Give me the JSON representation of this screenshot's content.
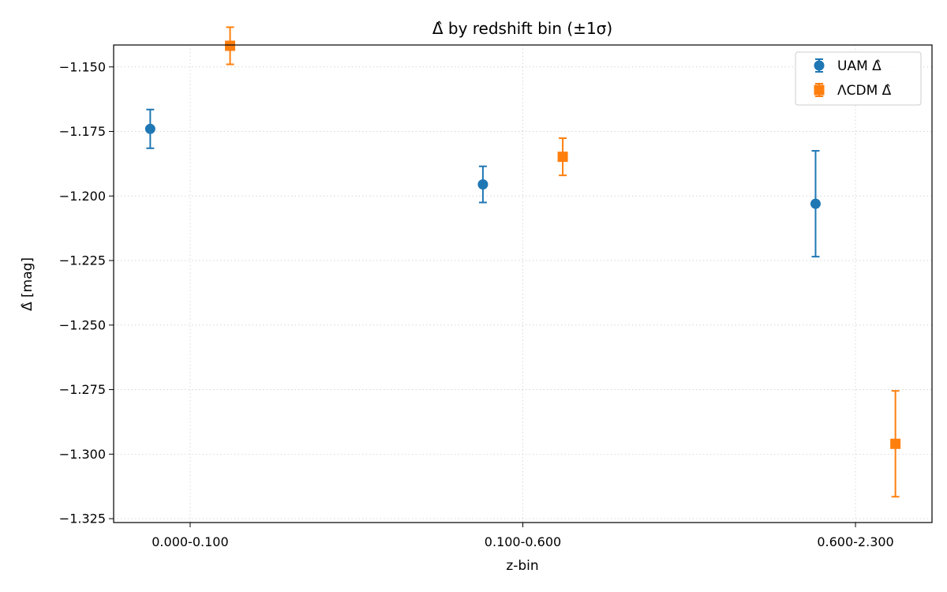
{
  "chart_data": {
    "type": "scatter",
    "title": "Δ̂ by redshift bin (±1σ)",
    "xlabel": "z-bin",
    "ylabel": "Δ̂ [mag]",
    "categories": [
      "0.000-0.100",
      "0.100-0.600",
      "0.600-2.300"
    ],
    "ylim": [
      -1.3265,
      -1.1415
    ],
    "yticks": [
      -1.325,
      -1.3,
      -1.275,
      -1.25,
      -1.225,
      -1.2,
      -1.175,
      -1.15
    ],
    "ytick_labels": [
      "−1.325",
      "−1.300",
      "−1.275",
      "−1.250",
      "−1.225",
      "−1.200",
      "−1.175",
      "−1.150"
    ],
    "grid": true,
    "legend_position": "top-right",
    "series": [
      {
        "name": "UAM Δ̂",
        "marker": "circle",
        "color": "#1f77b4",
        "offset": -0.12,
        "values": [
          -1.174,
          -1.1955,
          -1.203
        ],
        "errors": [
          0.0075,
          0.007,
          0.0205
        ]
      },
      {
        "name": "ΛCDM Δ̂",
        "marker": "square",
        "color": "#ff7f0e",
        "offset": 0.12,
        "values": [
          -1.1418,
          -1.1848,
          -1.296
        ],
        "errors": [
          0.0072,
          0.0072,
          0.0205
        ]
      }
    ]
  }
}
